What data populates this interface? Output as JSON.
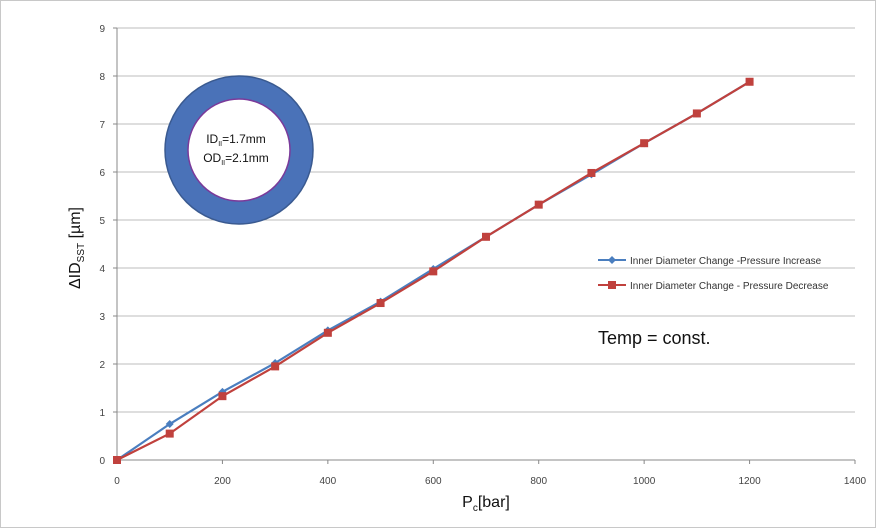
{
  "chart_data": {
    "type": "line",
    "title": "",
    "xlabel": {
      "main": "P",
      "sub": "c",
      "rest": "[bar]"
    },
    "ylabel": {
      "main": "ΔID",
      "sub": "SST",
      "rest": " [µm]"
    },
    "xlim": [
      0,
      1400
    ],
    "ylim": [
      0,
      9
    ],
    "xticks": [
      "0",
      "200",
      "400",
      "600",
      "800",
      "1000",
      "1200",
      "1400"
    ],
    "yticks": [
      "0",
      "1",
      "2",
      "3",
      "4",
      "5",
      "6",
      "7",
      "8",
      "9"
    ],
    "grid": "horizontal",
    "legend_position": "right",
    "series": [
      {
        "name": "Inner Diameter Change -Pressure Increase",
        "color": "#4a7ebf",
        "marker": "diamond",
        "x": [
          0,
          100,
          200,
          300,
          400,
          500,
          600,
          700,
          800,
          900,
          1000,
          1100,
          1200
        ],
        "y": [
          0,
          0.75,
          1.42,
          2.02,
          2.7,
          3.3,
          3.98,
          4.65,
          5.32,
          5.95,
          6.6,
          7.22,
          7.88
        ]
      },
      {
        "name": "Inner Diameter Change  - Pressure Decrease",
        "color": "#c0413d",
        "marker": "square",
        "x": [
          0,
          100,
          200,
          300,
          400,
          500,
          600,
          700,
          800,
          900,
          1000,
          1100,
          1200
        ],
        "y": [
          0,
          0.55,
          1.33,
          1.95,
          2.65,
          3.27,
          3.93,
          4.65,
          5.32,
          5.98,
          6.6,
          7.22,
          7.88
        ]
      }
    ],
    "annotations": {
      "temp": "Temp = const.",
      "ring_id": {
        "main": "ID",
        "sub": "II",
        "rest": "=1.7mm"
      },
      "ring_od": {
        "main": "OD",
        "sub": "II",
        "rest": "=2.1mm"
      }
    },
    "colors": {
      "ring_fill": "#4a72b8",
      "ring_stroke": "#3a5a90",
      "ring_inner_stroke": "#7a3a9a",
      "grid": "#bdbdbd",
      "axis": "#888888"
    }
  }
}
